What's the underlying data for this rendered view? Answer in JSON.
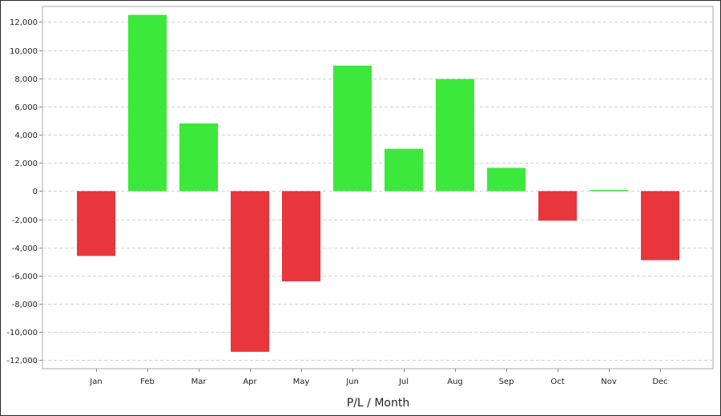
{
  "chart_data": {
    "type": "bar",
    "categories": [
      "Jan",
      "Feb",
      "Mar",
      "Apr",
      "May",
      "Jun",
      "Jul",
      "Aug",
      "Sep",
      "Oct",
      "Nov",
      "Dec"
    ],
    "values": [
      -4600,
      12500,
      4800,
      -11400,
      -6400,
      8900,
      3000,
      7950,
      1650,
      -2100,
      80,
      -4900
    ],
    "title": "",
    "xlabel": "P/L / Month",
    "ylabel": "",
    "ylim": [
      -12600,
      13100
    ],
    "yticks": [
      12000,
      10000,
      8000,
      6000,
      4000,
      2000,
      0,
      -2000,
      -4000,
      -6000,
      -8000,
      -10000,
      -12000
    ],
    "ytick_labels": [
      "12,000",
      "10,000",
      "8,000",
      "6,000",
      "4,000",
      "2,000",
      "0",
      "-2,000",
      "-4,000",
      "-6,000",
      "-8,000",
      "-10,000",
      "-12,000"
    ],
    "grid": true,
    "colors": {
      "positive": "#3de83d",
      "negative": "#e8363c",
      "grid": "#d0d0d0",
      "axis": "#888888"
    }
  }
}
